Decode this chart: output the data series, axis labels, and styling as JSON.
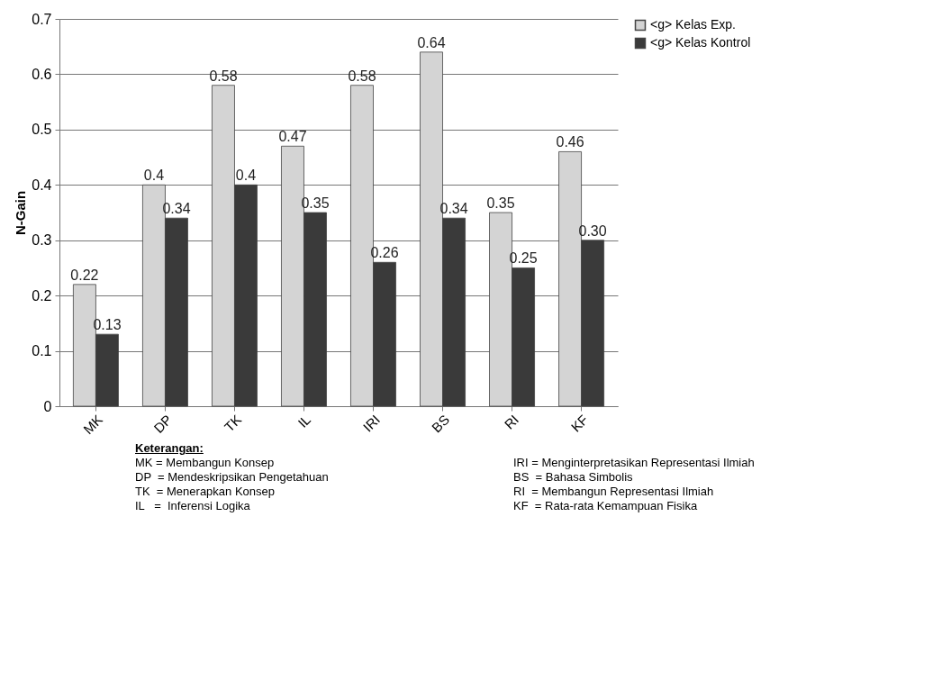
{
  "chart_data": {
    "type": "bar",
    "ylabel": "N-Gain",
    "categories": [
      "MK",
      "DP",
      "TK",
      "IL",
      "IRI",
      "BS",
      "RI",
      "KF"
    ],
    "series": [
      {
        "name": "<g> Kelas Exp.",
        "color": "#d4d4d4",
        "values": [
          0.22,
          0.4,
          0.58,
          0.47,
          0.58,
          0.64,
          0.35,
          0.46
        ],
        "value_labels": [
          "0.22",
          "0.4",
          "0.58",
          "0.47",
          "0.58",
          "0.64",
          "0.35",
          "0.46"
        ]
      },
      {
        "name": "<g> Kelas Kontrol",
        "color": "#3a3a3a",
        "values": [
          0.13,
          0.34,
          0.4,
          0.35,
          0.26,
          0.34,
          0.25,
          0.3
        ],
        "value_labels": [
          "0.13",
          "0.34",
          "0.4",
          "0.35",
          "0.26",
          "0.34",
          "0.25",
          "0.30"
        ]
      }
    ],
    "ylim": [
      0,
      0.7
    ],
    "yticks": [
      0,
      0.1,
      0.2,
      0.3,
      0.4,
      0.5,
      0.6,
      0.7
    ],
    "grid": "y",
    "legend": "right",
    "annotations": [
      "Keterangan:",
      "MK = Membangun Konsep",
      "DP  = Mendeskripsikan Pengetahuan",
      "TK  = Menerapkan Konsep",
      "IL   =  Inferensi Logika",
      "IRI = Menginterpretasikan Representasi Ilmiah",
      "BS  = Bahasa Simbolis",
      "RI  = Membangun Representasi Ilmiah",
      "KF  = Rata-rata Kemampuan Fisika"
    ]
  }
}
